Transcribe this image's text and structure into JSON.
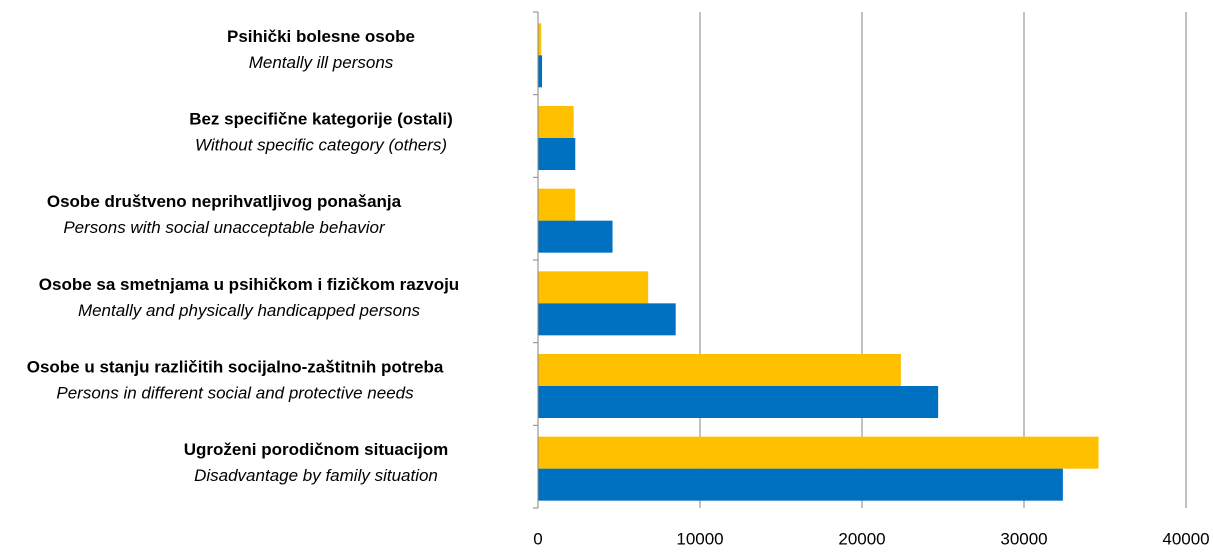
{
  "chart_data": {
    "type": "bar",
    "orientation": "horizontal",
    "categories": [
      "Psihički bolesne osobe",
      "Bez specifične kategorije (ostali)",
      "Osobe društveno neprihvatljivog ponašanja",
      "Osobe sa smetnjama u psihičkom i fizičkom razvoju",
      "Osobe u stanju različitih socijalno-zaštitnih potreba",
      "Ugroženi porodičnom situacijom"
    ],
    "category_translations": [
      "Mentally ill persons",
      "Without specific category (others)",
      "Persons with social unacceptable behavior",
      "Mentally and physically handicapped persons",
      "Persons in different social and protective needs",
      "Disadvantage by family situation"
    ],
    "series": [
      {
        "color": "#ffc000",
        "values": [
          200,
          2200,
          2300,
          6800,
          22400,
          34600
        ]
      },
      {
        "color": "#0070c0",
        "values": [
          250,
          2300,
          4600,
          8500,
          24700,
          32400
        ]
      }
    ],
    "xlim": [
      0,
      40000
    ],
    "xticks": [
      0,
      10000,
      20000,
      30000,
      40000
    ],
    "grid": true
  }
}
